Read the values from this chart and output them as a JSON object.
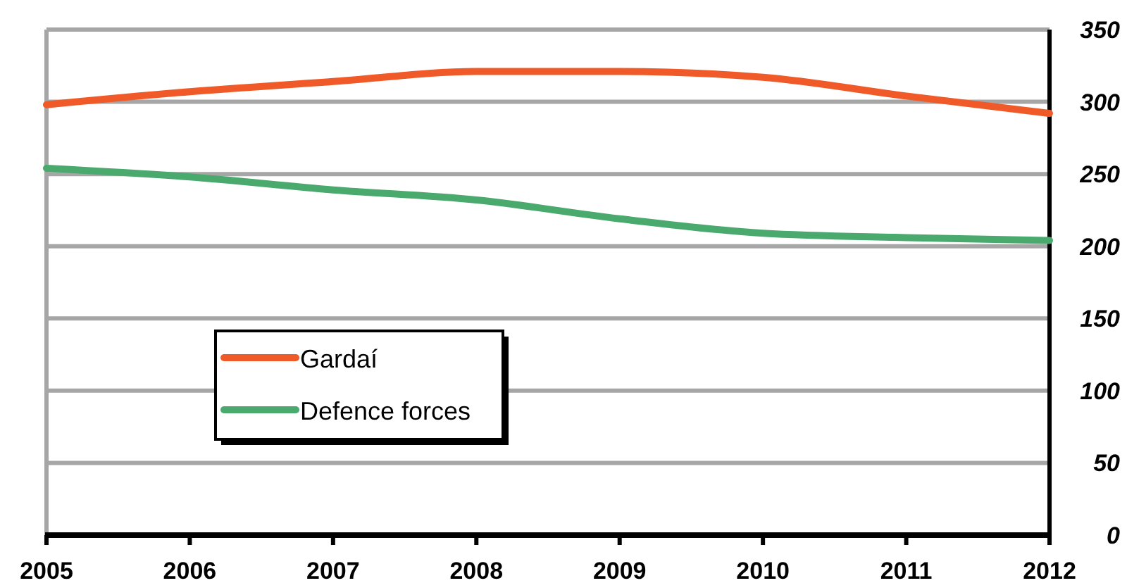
{
  "chart_data": {
    "type": "line",
    "x": [
      2005,
      2006,
      2007,
      2008,
      2009,
      2010,
      2011,
      2012
    ],
    "series": [
      {
        "name": "Gardaí",
        "color": "#f05a28",
        "values": [
          298,
          307,
          314,
          321,
          321,
          317,
          304,
          292
        ]
      },
      {
        "name": "Defence forces",
        "color": "#4aaa6e",
        "values": [
          254,
          248,
          239,
          232,
          219,
          209,
          206,
          204
        ]
      }
    ],
    "xlim": [
      2005,
      2012
    ],
    "xticks": [
      2005,
      2006,
      2007,
      2008,
      2009,
      2010,
      2011,
      2012
    ],
    "ylim": [
      0,
      350
    ],
    "yticks": [
      0,
      50,
      100,
      150,
      200,
      250,
      300,
      350
    ],
    "grid": "y",
    "legend": "bottom left",
    "marker": "none",
    "line_style": "solid"
  }
}
